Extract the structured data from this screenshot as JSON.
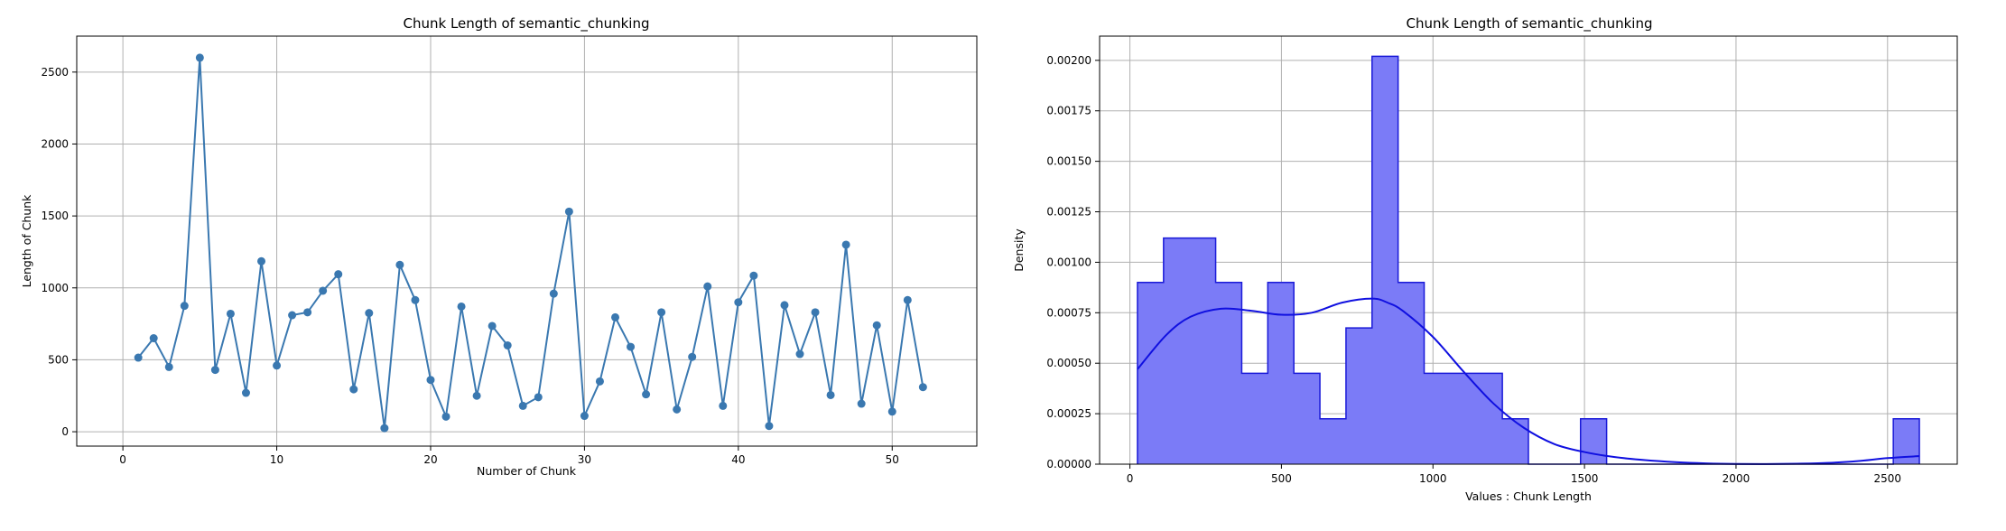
{
  "chart_data": [
    {
      "type": "line",
      "title": "Chunk Length of semantic_chunking",
      "xlabel": "Number of Chunk",
      "ylabel": "Length of Chunk",
      "xlim": [
        -3,
        55.5
      ],
      "ylim": [
        -100,
        2750
      ],
      "xticks": [
        0,
        10,
        20,
        30,
        40,
        50
      ],
      "yticks": [
        0,
        500,
        1000,
        1500,
        2000,
        2500
      ],
      "grid": true,
      "color": "#3a78b0",
      "x": [
        1,
        2,
        3,
        4,
        5,
        6,
        7,
        8,
        9,
        10,
        11,
        12,
        13,
        14,
        15,
        16,
        17,
        18,
        19,
        20,
        21,
        22,
        23,
        24,
        25,
        26,
        27,
        28,
        29,
        30,
        31,
        32,
        33,
        34,
        35,
        36,
        37,
        38,
        39,
        40,
        41,
        42,
        43,
        44,
        45,
        46,
        47,
        48,
        49,
        50,
        51,
        52
      ],
      "y": [
        515,
        650,
        450,
        875,
        2600,
        430,
        820,
        270,
        1185,
        460,
        810,
        830,
        980,
        1095,
        295,
        825,
        25,
        1160,
        915,
        360,
        105,
        870,
        250,
        735,
        600,
        180,
        240,
        960,
        1530,
        110,
        350,
        795,
        590,
        260,
        830,
        155,
        520,
        1010,
        180,
        900,
        1085,
        40,
        880,
        540,
        830,
        255,
        1300,
        195,
        740,
        140,
        915,
        310
      ]
    },
    {
      "type": "histogram",
      "title": "Chunk Length of semantic_chunking",
      "xlabel": "Values : Chunk Length",
      "ylabel": "Density",
      "xlim": [
        -100,
        2730
      ],
      "ylim": [
        0,
        0.00212
      ],
      "xticks": [
        0,
        500,
        1000,
        1500,
        2000,
        2500
      ],
      "yticks": [
        "0.00000",
        "0.00025",
        "0.00050",
        "0.00075",
        "0.00100",
        "0.00125",
        "0.00150",
        "0.00175",
        "0.00200"
      ],
      "grid": true,
      "color": "#0000ff",
      "bin_edges": [
        25,
        111,
        197,
        283,
        369,
        455,
        541,
        627,
        713,
        799,
        885,
        971,
        1057,
        1143,
        1229,
        1315,
        1401,
        1487,
        1573,
        1659,
        1745,
        1831,
        1917,
        2003,
        2089,
        2175,
        2261,
        2347,
        2433,
        2519,
        2605
      ],
      "densities": [
        0.0009,
        0.00112,
        0.00112,
        0.0009,
        0.00045,
        0.0009,
        0.00045,
        0.000225,
        0.000675,
        0.00202,
        0.0009,
        0.00045,
        0.00045,
        0.00045,
        0.000225,
        0,
        0,
        0.000225,
        0,
        0,
        0,
        0,
        0,
        0,
        0,
        0,
        0,
        0,
        0,
        0.000225
      ],
      "kde_x": [
        25,
        120,
        200,
        300,
        400,
        500,
        600,
        700,
        800,
        850,
        900,
        1000,
        1100,
        1200,
        1300,
        1400,
        1500,
        1600,
        1700,
        1800,
        1900,
        2000,
        2100,
        2200,
        2300,
        2400,
        2500,
        2605
      ],
      "kde_y": [
        0.00047,
        0.00064,
        0.00073,
        0.00077,
        0.00076,
        0.00074,
        0.00075,
        0.0008,
        0.00082,
        0.0008,
        0.00076,
        0.00063,
        0.00046,
        0.0003,
        0.00018,
        0.0001,
        6e-05,
        3.5e-05,
        2e-05,
        1e-05,
        4e-06,
        1e-06,
        5e-07,
        2e-06,
        6e-06,
        1.5e-05,
        3e-05,
        4e-05
      ]
    }
  ]
}
